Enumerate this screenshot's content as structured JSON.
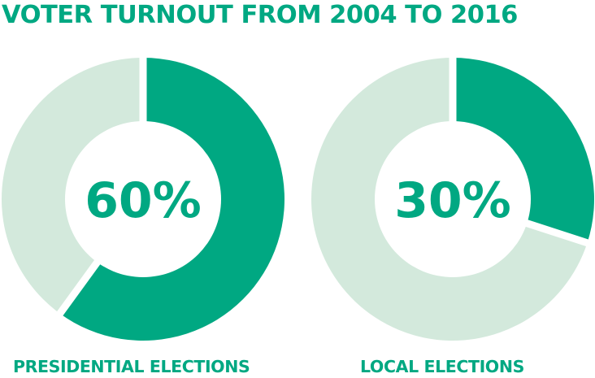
{
  "title": "VOTER TURNOUT FROM 2004 TO 2016",
  "colors": {
    "accent": "#00a882",
    "light": "#d3e9dc",
    "gap": "#ffffff"
  },
  "chart_data": [
    {
      "type": "pie",
      "variant": "donut",
      "center_label": "60%",
      "caption": "PRESIDENTIAL ELECTIONS",
      "values": [
        60,
        40
      ],
      "colors": [
        "#00a882",
        "#d3e9dc"
      ],
      "start": "12 o'clock",
      "direction": "clockwise"
    },
    {
      "type": "pie",
      "variant": "donut",
      "center_label": "30%",
      "caption": "LOCAL ELECTIONS",
      "values": [
        30,
        70
      ],
      "colors": [
        "#00a882",
        "#d3e9dc"
      ],
      "start": "12 o'clock",
      "direction": "clockwise"
    }
  ]
}
